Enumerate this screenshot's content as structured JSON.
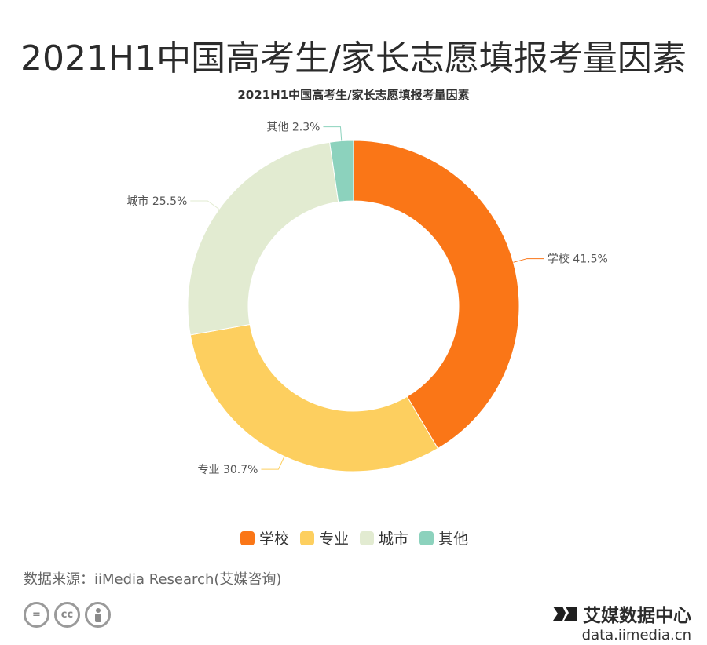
{
  "header": {
    "title": "2021H1中国高考生/家长志愿填报考量因素"
  },
  "chart_data": {
    "type": "pie",
    "title": "2021H1中国高考生/家长志愿填报考量因素",
    "donut": true,
    "categories": [
      "学校",
      "专业",
      "城市",
      "其他"
    ],
    "values": [
      41.5,
      30.7,
      25.5,
      2.3
    ],
    "unit": "%",
    "data_labels": [
      "学校 41.5%",
      "专业 30.7%",
      "城市 25.5%",
      "其他 2.3%"
    ],
    "colors": [
      "#fa7617",
      "#fdcf5f",
      "#e2ebd1",
      "#8cd2bd"
    ],
    "legend_position": "bottom"
  },
  "footer": {
    "source": "数据来源：iiMedia Research(艾媒咨询)",
    "license_icons": [
      "=",
      "cc",
      "person"
    ],
    "brand_name": "艾媒数据中心",
    "brand_url": "data.iimedia.cn"
  }
}
